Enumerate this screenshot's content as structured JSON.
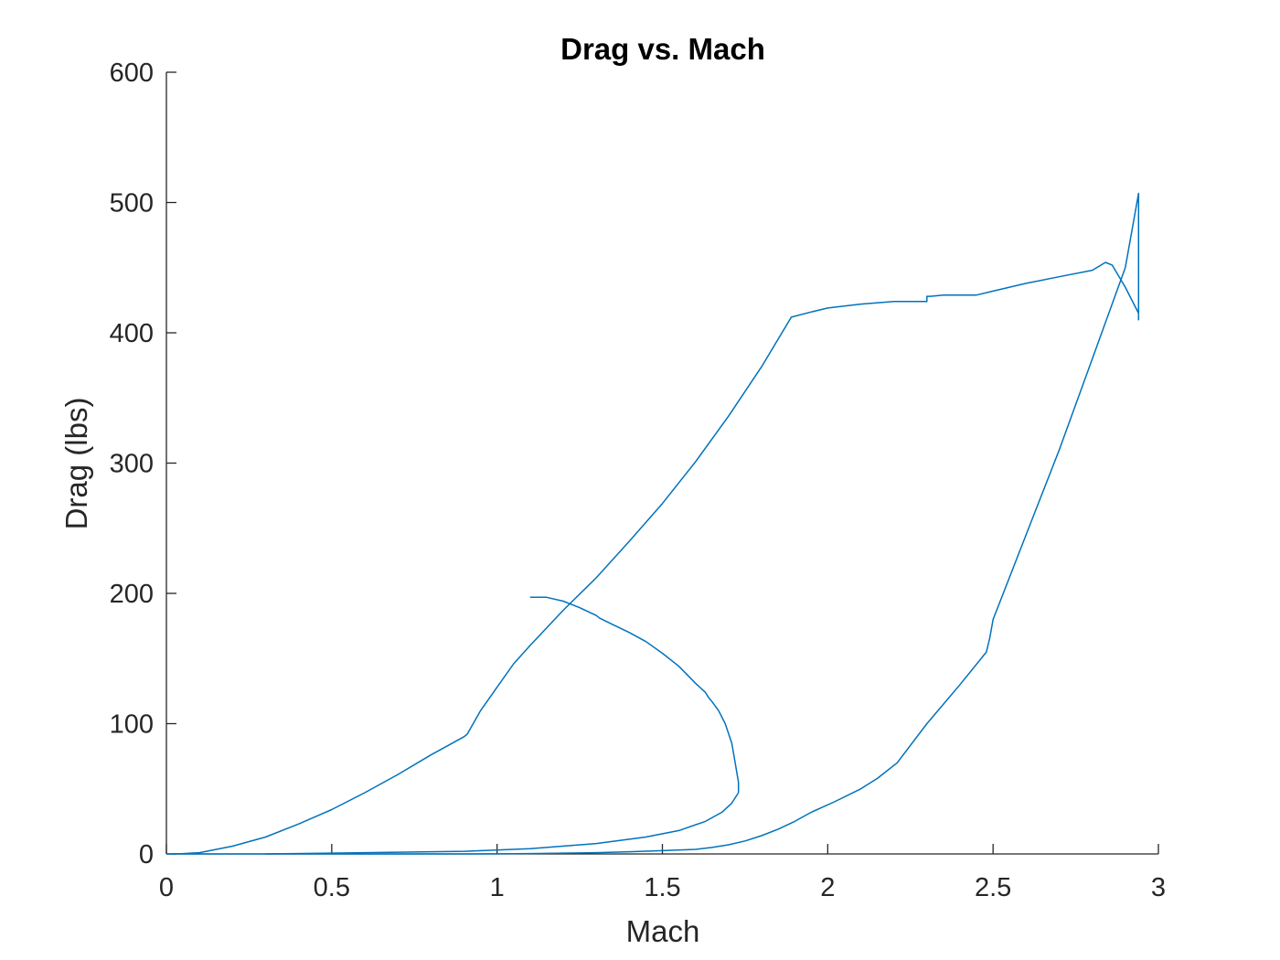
{
  "chart_data": {
    "type": "line",
    "title": "Drag vs. Mach",
    "xlabel": "Mach",
    "ylabel": "Drag (lbs)",
    "xlim": [
      0,
      3
    ],
    "ylim": [
      0,
      600
    ],
    "xticks": [
      0,
      0.5,
      1,
      1.5,
      2,
      2.5,
      3
    ],
    "xtick_labels": [
      "0",
      "0.5",
      "1",
      "1.5",
      "2",
      "2.5",
      "3"
    ],
    "yticks": [
      0,
      100,
      200,
      300,
      400,
      500,
      600
    ],
    "ytick_labels": [
      "0",
      "100",
      "200",
      "300",
      "400",
      "500",
      "600"
    ],
    "grid": false,
    "line_color": "#0072BD",
    "series": [
      {
        "x": [
          0,
          0.05,
          0.1,
          0.2,
          0.3,
          0.4,
          0.5,
          0.6,
          0.7,
          0.8,
          0.9,
          0.91,
          0.95,
          1.0,
          1.05,
          1.1,
          1.2,
          1.3,
          1.4,
          1.5,
          1.6,
          1.7,
          1.8,
          1.89,
          1.95,
          2.0,
          2.1,
          2.2,
          2.3,
          2.3,
          2.31,
          2.35,
          2.45,
          2.5,
          2.6,
          2.7,
          2.8,
          2.84,
          2.86,
          2.9,
          2.94,
          2.94,
          2.94,
          2.94,
          2.9,
          2.8,
          2.7,
          2.6,
          2.5,
          2.49,
          2.48,
          2.4,
          2.3,
          2.21,
          2.15,
          2.1,
          2.02,
          1.95,
          1.9,
          1.85,
          1.8,
          1.75,
          1.7,
          1.65,
          1.6,
          1.5,
          1.4,
          1.3,
          1.2,
          1.1,
          1.0,
          0.9,
          0.8,
          0.6,
          0.4,
          0.3,
          0.2,
          0.1,
          0.05,
          0
        ],
        "y": [
          0,
          0.3,
          1,
          6,
          13,
          23,
          34,
          47,
          61,
          76,
          90,
          92,
          110,
          128,
          146,
          160,
          187,
          212,
          240,
          269,
          301,
          336,
          374,
          412,
          416,
          419,
          422,
          424,
          424,
          428,
          428,
          429,
          429,
          432,
          438,
          443,
          448,
          454,
          452,
          435,
          415,
          410,
          505,
          507,
          450,
          380,
          310,
          245,
          180,
          166,
          155,
          130,
          100,
          70,
          58,
          50,
          40,
          32,
          25,
          19,
          14,
          10,
          7,
          5,
          3.5,
          2.5,
          1.7,
          1.0,
          0.6,
          0.3,
          0.1,
          0,
          0,
          0,
          0,
          0,
          0,
          0,
          0,
          0
        ]
      },
      {
        "x": [
          1.73,
          1.73,
          1.72,
          1.71,
          1.69,
          1.67,
          1.65,
          1.64,
          1.63,
          1.6,
          1.55,
          1.5,
          1.45,
          1.4,
          1.35,
          1.31,
          1.3,
          1.25,
          1.2,
          1.15,
          1.1
        ],
        "y": [
          47,
          55,
          70,
          85,
          100,
          110,
          117,
          120,
          124,
          131,
          144,
          154,
          163,
          170,
          176,
          181,
          183,
          189,
          194,
          197,
          197
        ]
      },
      {
        "x": [
          0.3,
          0.6,
          0.9,
          1.1,
          1.3,
          1.45,
          1.55,
          1.63,
          1.68,
          1.71,
          1.73
        ],
        "y": [
          0,
          1,
          2,
          4,
          8,
          13,
          18,
          25,
          32,
          39,
          47
        ]
      }
    ]
  }
}
